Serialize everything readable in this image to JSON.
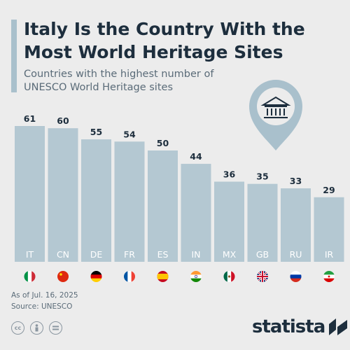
{
  "header": {
    "title": "Italy Is the Country With the Most World Heritage Sites",
    "subtitle": "Countries with the highest number of UNESCO World Heritage sites"
  },
  "footer": {
    "as_of": "As of Jul. 16, 2025",
    "source": "Source: UNESCO",
    "brand": "statista",
    "license_icons": [
      "cc-icon",
      "attribution-icon",
      "no-derivatives-icon"
    ]
  },
  "colors": {
    "bar": "#b4c8d2",
    "value_text": "#1d2e3d",
    "axis_text": "#ffffff",
    "pin": "#a9c0cc",
    "background": "#ececec"
  },
  "decoration": {
    "icon": "museum-building-icon"
  },
  "chart_data": {
    "type": "bar",
    "categories": [
      "IT",
      "CN",
      "DE",
      "FR",
      "ES",
      "IN",
      "MX",
      "GB",
      "RU",
      "IR"
    ],
    "values": [
      61,
      60,
      55,
      54,
      50,
      44,
      36,
      35,
      33,
      29
    ],
    "flags": [
      "italy-flag-icon",
      "china-flag-icon",
      "germany-flag-icon",
      "france-flag-icon",
      "spain-flag-icon",
      "india-flag-icon",
      "mexico-flag-icon",
      "uk-flag-icon",
      "russia-flag-icon",
      "iran-flag-icon"
    ],
    "title": "Italy Is the Country With the Most World Heritage Sites",
    "xlabel": "",
    "ylabel": "",
    "ylim": [
      0,
      61
    ],
    "grid": false,
    "data_labels": true
  }
}
